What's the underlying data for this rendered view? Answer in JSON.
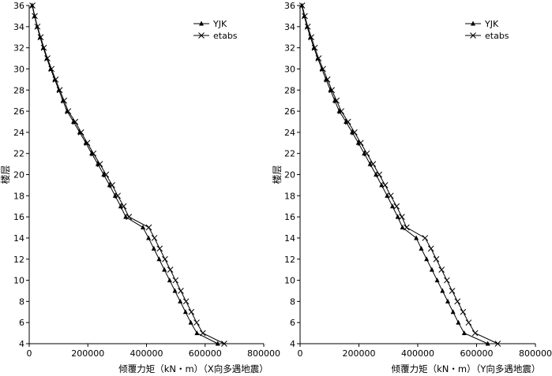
{
  "chart_data": [
    {
      "type": "line",
      "xlabel": "倾覆力矩（kN・m）（X向多遇地震）",
      "ylabel": "楼层",
      "xlim": [
        0,
        800000
      ],
      "ylim": [
        4,
        36
      ],
      "xticks": [
        "0",
        "200000",
        "400000",
        "600000",
        "800000"
      ],
      "yticks": [
        "4",
        "6",
        "8",
        "10",
        "12",
        "14",
        "16",
        "18",
        "20",
        "22",
        "24",
        "26",
        "28",
        "30",
        "32",
        "34",
        "36"
      ],
      "legend_position": "top-right",
      "series": [
        {
          "name": "YJK",
          "marker": "triangle",
          "y": [
            4,
            5,
            6,
            7,
            8,
            9,
            10,
            11,
            12,
            13,
            14,
            15,
            16,
            17,
            18,
            19,
            20,
            21,
            22,
            23,
            24,
            25,
            26,
            27,
            28,
            29,
            30,
            31,
            32,
            33,
            34,
            35,
            36
          ],
          "x": [
            643000,
            572000,
            551000,
            533000,
            515000,
            497000,
            479000,
            461000,
            443000,
            425000,
            407000,
            388000,
            329000,
            312000,
            293000,
            274000,
            254000,
            234000,
            213000,
            193000,
            172000,
            151000,
            129000,
            115000,
            101000,
            87000,
            73000,
            60000,
            48000,
            37000,
            27000,
            18000,
            10000
          ]
        },
        {
          "name": "etabs",
          "marker": "x",
          "y": [
            4,
            5,
            6,
            7,
            8,
            9,
            10,
            11,
            12,
            13,
            14,
            15,
            16,
            17,
            18,
            19,
            20,
            21,
            22,
            23,
            24,
            25,
            26,
            27,
            28,
            29,
            30,
            31,
            32,
            33,
            34,
            35,
            36
          ],
          "x": [
            665000,
            592000,
            571000,
            553000,
            535000,
            517000,
            499000,
            481000,
            463000,
            445000,
            427000,
            408000,
            340000,
            322000,
            302000,
            283000,
            262000,
            241000,
            219000,
            198000,
            177000,
            157000,
            133000,
            119000,
            104000,
            90000,
            76000,
            62000,
            50000,
            39000,
            28000,
            19000,
            11000
          ]
        }
      ]
    },
    {
      "type": "line",
      "xlabel": "倾覆力矩（kN・m）（Y向多遇地震）",
      "ylabel": "楼层",
      "xlim": [
        0,
        800000
      ],
      "ylim": [
        4,
        36
      ],
      "xticks": [
        "0",
        "200000",
        "400000",
        "600000",
        "800000"
      ],
      "yticks": [
        "4",
        "6",
        "8",
        "10",
        "12",
        "14",
        "16",
        "18",
        "20",
        "22",
        "24",
        "26",
        "28",
        "30",
        "32",
        "34",
        "36"
      ],
      "legend_position": "top-right",
      "series": [
        {
          "name": "YJK",
          "marker": "triangle",
          "y": [
            4,
            5,
            6,
            7,
            8,
            9,
            10,
            11,
            12,
            13,
            14,
            15,
            16,
            17,
            18,
            19,
            20,
            21,
            22,
            23,
            24,
            25,
            26,
            27,
            28,
            29,
            30,
            31,
            32,
            33,
            34,
            35,
            36
          ],
          "x": [
            638000,
            558000,
            538000,
            520000,
            502000,
            484000,
            466000,
            448000,
            430000,
            412000,
            395000,
            348000,
            332000,
            314000,
            296000,
            277000,
            258000,
            238000,
            218000,
            198000,
            177000,
            156000,
            133000,
            118000,
            103000,
            88000,
            74000,
            60000,
            47000,
            35000,
            24000,
            14000,
            6000
          ]
        },
        {
          "name": "etabs",
          "marker": "x",
          "y": [
            4,
            5,
            6,
            7,
            8,
            9,
            10,
            11,
            12,
            13,
            14,
            15,
            16,
            17,
            18,
            19,
            20,
            21,
            22,
            23,
            24,
            25,
            26,
            27,
            28,
            29,
            30,
            31,
            32,
            33,
            34,
            35,
            36
          ],
          "x": [
            672000,
            595000,
            573000,
            554000,
            535000,
            517000,
            499000,
            481000,
            463000,
            445000,
            425000,
            362000,
            346000,
            328000,
            308000,
            289000,
            269000,
            248000,
            227000,
            206000,
            185000,
            163000,
            140000,
            124000,
            108000,
            93000,
            78000,
            63000,
            50000,
            38000,
            26000,
            16000,
            7000
          ]
        }
      ]
    }
  ]
}
